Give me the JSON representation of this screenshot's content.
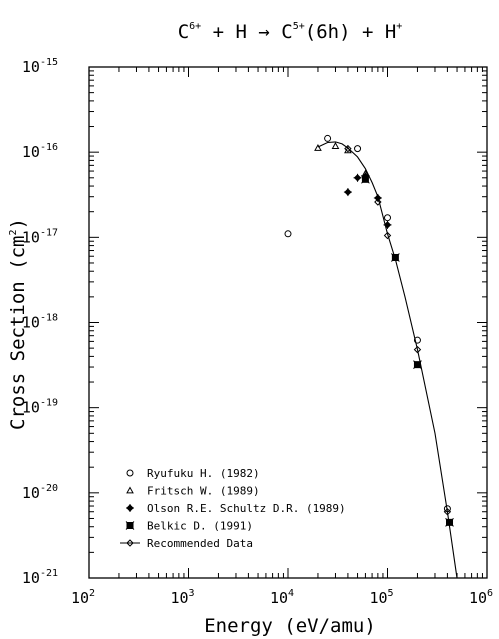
{
  "chart_data": {
    "type": "scatter",
    "title": {
      "text1": "C",
      "sup1": "6+",
      "text2": " + H → C",
      "sup2": "5+",
      "text3": "(6h) + H",
      "sup3": "+"
    },
    "xlabel": "Energy (eV/amu)",
    "ylabel": {
      "text": "Cross Section (cm",
      "sup": "2",
      "end": ")"
    },
    "x_scale": "log",
    "y_scale": "log",
    "xlim": [
      100,
      1000000
    ],
    "ylim": [
      1e-21,
      1e-15
    ],
    "x_ticks": [
      {
        "value": 100,
        "base": "10",
        "exp": "2"
      },
      {
        "value": 1000,
        "base": "10",
        "exp": "3"
      },
      {
        "value": 10000,
        "base": "10",
        "exp": "4"
      },
      {
        "value": 100000,
        "base": "10",
        "exp": "5"
      },
      {
        "value": 1000000,
        "base": "10",
        "exp": "6"
      }
    ],
    "y_ticks": [
      {
        "value": 1e-21,
        "base": "10",
        "exp": "-21"
      },
      {
        "value": 1e-20,
        "base": "10",
        "exp": "-20"
      },
      {
        "value": 1e-19,
        "base": "10",
        "exp": "-19"
      },
      {
        "value": 1e-18,
        "base": "10",
        "exp": "-18"
      },
      {
        "value": 1e-17,
        "base": "10",
        "exp": "-17"
      },
      {
        "value": 1e-16,
        "base": "10",
        "exp": "-16"
      },
      {
        "value": 1e-15,
        "base": "10",
        "exp": "-15"
      }
    ],
    "legend_position": "bottom-left",
    "series": [
      {
        "name": "Ryufuku H. (1982)",
        "marker": "circle",
        "points": [
          {
            "x": 10000,
            "y": 1.1e-17
          },
          {
            "x": 25000,
            "y": 1.45e-16
          },
          {
            "x": 50000,
            "y": 1.1e-16
          },
          {
            "x": 100000,
            "y": 1.7e-17
          },
          {
            "x": 200000,
            "y": 6.2e-19
          },
          {
            "x": 400000,
            "y": 6.5e-21
          }
        ]
      },
      {
        "name": "Fritsch W. (1989)",
        "marker": "triangle",
        "points": [
          {
            "x": 20000,
            "y": 1.12e-16
          },
          {
            "x": 30000,
            "y": 1.18e-16
          },
          {
            "x": 40000,
            "y": 1.05e-16
          },
          {
            "x": 60000,
            "y": 5.6e-17
          }
        ]
      },
      {
        "name": "Olson R.E. Schultz D.R. (1989)",
        "marker": "diamond-plus",
        "points": [
          {
            "x": 40000,
            "y": 3.4e-17
          },
          {
            "x": 50000,
            "y": 5e-17
          },
          {
            "x": 60000,
            "y": 5.2e-17
          },
          {
            "x": 80000,
            "y": 2.9e-17
          },
          {
            "x": 100000,
            "y": 1.4e-17
          }
        ]
      },
      {
        "name": "Belkic D. (1991)",
        "marker": "square-x",
        "points": [
          {
            "x": 60000,
            "y": 4.8e-17
          },
          {
            "x": 120000,
            "y": 5.8e-18
          },
          {
            "x": 200000,
            "y": 3.2e-19
          },
          {
            "x": 420000,
            "y": 4.5e-21
          }
        ]
      },
      {
        "name": "Recommended Data",
        "marker": "diamond",
        "line": true,
        "points": [
          {
            "x": 20000,
            "y": 1.15e-16
          },
          {
            "x": 25000,
            "y": 1.3e-16
          },
          {
            "x": 30000,
            "y": 1.32e-16
          },
          {
            "x": 35000,
            "y": 1.25e-16
          },
          {
            "x": 40000,
            "y": 1.12e-16
          },
          {
            "x": 50000,
            "y": 8.8e-17
          },
          {
            "x": 60000,
            "y": 6.4e-17
          },
          {
            "x": 70000,
            "y": 4.4e-17
          },
          {
            "x": 80000,
            "y": 3e-17
          },
          {
            "x": 100000,
            "y": 1.1e-17
          },
          {
            "x": 120000,
            "y": 5.5e-18
          },
          {
            "x": 150000,
            "y": 2e-18
          },
          {
            "x": 200000,
            "y": 4.8e-19
          },
          {
            "x": 300000,
            "y": 5e-20
          },
          {
            "x": 400000,
            "y": 6e-21
          },
          {
            "x": 500000,
            "y": 1e-21
          }
        ],
        "marker_points": [
          {
            "x": 40000,
            "y": 1.1e-16
          },
          {
            "x": 80000,
            "y": 2.6e-17
          },
          {
            "x": 100000,
            "y": 1.05e-17
          },
          {
            "x": 200000,
            "y": 4.8e-19
          },
          {
            "x": 400000,
            "y": 6e-21
          }
        ]
      }
    ]
  }
}
